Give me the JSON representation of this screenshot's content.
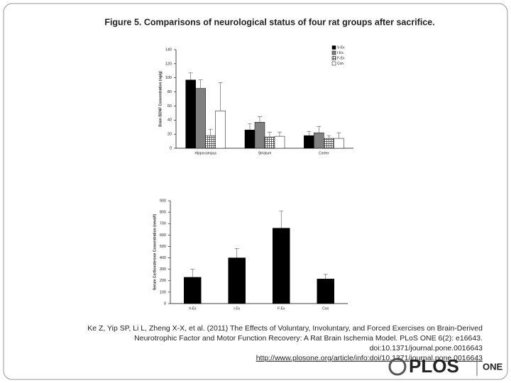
{
  "header": {
    "title": "Figure 5. Comparisons of neurological status of four rat groups after sacrifice."
  },
  "chart_data": [
    {
      "type": "bar",
      "ylabel": "Brain BDNF Concentration (ng/g)",
      "categories": [
        "Hippocampus",
        "Striatum",
        "Cortex"
      ],
      "series": [
        {
          "name": "V-Ex",
          "color": "#000000",
          "values": [
            97,
            26,
            18
          ],
          "errors": [
            10,
            9,
            6
          ]
        },
        {
          "name": "I-Ex",
          "color": "#808080",
          "values": [
            85,
            37,
            22
          ],
          "errors": [
            12,
            8,
            9
          ]
        },
        {
          "name": "F-Ex",
          "color": "#444444",
          "hatch": true,
          "values": [
            18,
            16,
            14
          ],
          "errors": [
            9,
            7,
            4
          ]
        },
        {
          "name": "Con",
          "color": "#ffffff",
          "values": [
            53,
            17,
            14
          ],
          "errors": [
            40,
            6,
            8
          ]
        }
      ],
      "ylim": [
        0,
        140
      ],
      "yticks": [
        0,
        20,
        40,
        60,
        80,
        100,
        120,
        140
      ],
      "legend": "upper right"
    },
    {
      "type": "bar",
      "ylabel": "Serum Corticosterone Concentration (nmol/l)",
      "categories": [
        "V-Ex",
        "I-Ex",
        "F-Ex",
        "Con"
      ],
      "series": [
        {
          "color": "#000000",
          "values": [
            230,
            400,
            660,
            215
          ],
          "errors": [
            70,
            80,
            150,
            40
          ]
        }
      ],
      "ylim": [
        0,
        900
      ],
      "yticks": [
        0,
        100,
        200,
        300,
        400,
        500,
        600,
        700,
        800,
        900
      ]
    }
  ],
  "citation": {
    "lines": [
      "Ke Z, Yip SP, Li L, Zheng X-X, et al. (2011) The Effects of Voluntary, Involuntary, and Forced Exercises on Brain-Derived",
      "Neurotrophic Factor and Motor Function Recovery: A Rat Brain Ischemia Model. PLoS ONE 6(2): e16643.",
      "doi:10.1371/journal.pone.0016643"
    ],
    "link": "http://www.plosone.org/article/info:doi/10.1371/journal.pone.0016643"
  },
  "logo": {
    "name": "PLOS",
    "journal": "ONE"
  }
}
